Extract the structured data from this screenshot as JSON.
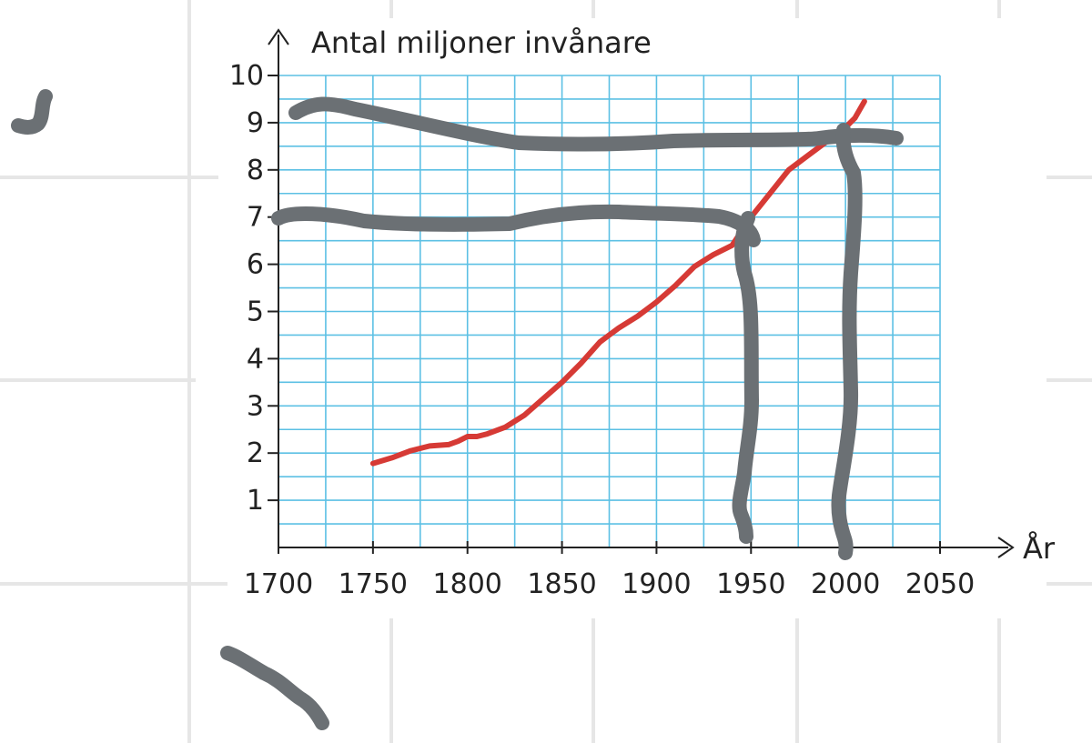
{
  "chart_data": {
    "type": "line",
    "ylabel": "Antal miljoner invånare",
    "xlabel": "År",
    "xlim": [
      1700,
      2050
    ],
    "ylim": [
      0,
      10
    ],
    "x_ticks": [
      "1700",
      "1750",
      "1800",
      "1850",
      "1900",
      "1950",
      "2000",
      "2050"
    ],
    "y_ticks": [
      "1",
      "2",
      "3",
      "4",
      "5",
      "6",
      "7",
      "8",
      "9",
      "10"
    ],
    "grid": true,
    "series": [
      {
        "x": [
          1750,
          1760,
          1770,
          1780,
          1790,
          1795,
          1800,
          1805,
          1810,
          1820,
          1830,
          1840,
          1850,
          1860,
          1870,
          1875,
          1880,
          1890,
          1900,
          1910,
          1920,
          1930,
          1940,
          1945,
          1950,
          1960,
          1970,
          1980,
          1990,
          2000,
          2005,
          2010
        ],
        "values": [
          1.78,
          1.9,
          2.05,
          2.15,
          2.18,
          2.25,
          2.35,
          2.35,
          2.4,
          2.55,
          2.8,
          3.15,
          3.5,
          3.9,
          4.35,
          4.5,
          4.65,
          4.9,
          5.2,
          5.55,
          5.95,
          6.2,
          6.4,
          6.7,
          7.0,
          7.5,
          8.0,
          8.3,
          8.6,
          8.9,
          9.1,
          9.45
        ],
        "color": "#d63a35"
      }
    ],
    "colors": {
      "grid": "#5cc0e4",
      "axis": "#222222",
      "marker_strokes": "#6b7074",
      "page_lines": "#e6e6e6"
    }
  }
}
